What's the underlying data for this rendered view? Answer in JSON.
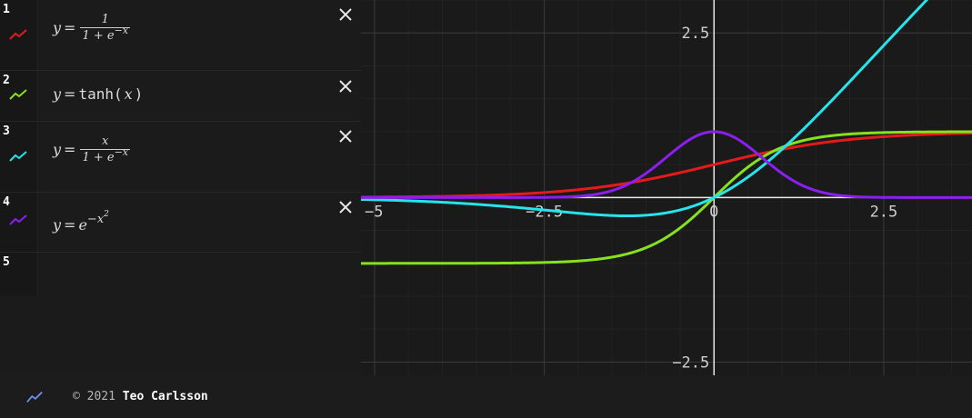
{
  "expressions": [
    {
      "index": "1",
      "color": "#e51a1a",
      "lhs": "y",
      "eq": "=",
      "num": "1",
      "den_prefix": "1 + e",
      "den_sup": "−x"
    },
    {
      "index": "2",
      "color": "#86e21d",
      "lhs": "y",
      "eq": "=",
      "fn": "tanh",
      "open": "(",
      "arg": "x",
      "close": ")"
    },
    {
      "index": "3",
      "color": "#27e3ec",
      "lhs": "y",
      "eq": "=",
      "num": "x",
      "den_prefix": "1 + e",
      "den_sup": "−x"
    },
    {
      "index": "4",
      "color": "#8a1ff0",
      "lhs": "y",
      "eq": "=",
      "base": "e",
      "exp": "−x",
      "exp2": "2"
    },
    {
      "index": "5"
    }
  ],
  "footer": {
    "copyright": "© 2021",
    "author": "Teo Carlsson",
    "logo_color": "#6d8ee8"
  },
  "icons": {
    "close": "close-icon",
    "swatch": "graph-line-icon",
    "logo": "graph-line-icon"
  },
  "chart_data": {
    "type": "line",
    "xlim": [
      -5.2,
      3.8
    ],
    "ylim": [
      -2.7,
      3.0
    ],
    "grid": true,
    "x_ticks": [
      {
        "v": -5,
        "label": "−5"
      },
      {
        "v": -2.5,
        "label": "−2.5"
      },
      {
        "v": 0,
        "label": "0"
      },
      {
        "v": 2.5,
        "label": "2.5"
      }
    ],
    "y_ticks": [
      {
        "v": 2.5,
        "label": "2.5"
      },
      {
        "v": -2.5,
        "label": "−2.5"
      }
    ],
    "series": [
      {
        "fn": "sigmoid",
        "color": "#e51a1a"
      },
      {
        "fn": "tanh",
        "color": "#86e21d"
      },
      {
        "fn": "swish",
        "color": "#27e3ec"
      },
      {
        "fn": "gaussian",
        "color": "#8a1ff0"
      }
    ]
  }
}
